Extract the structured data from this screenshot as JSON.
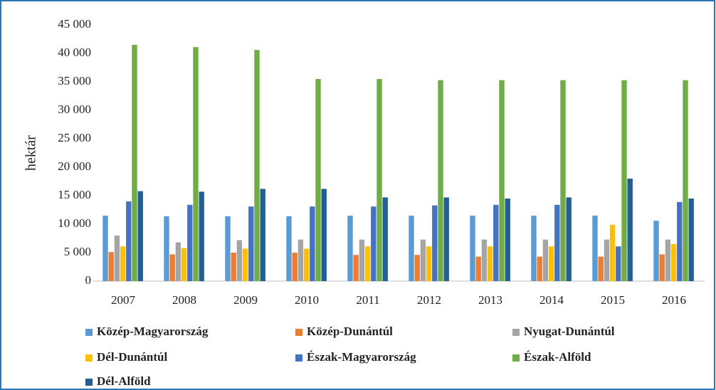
{
  "chart_data": {
    "type": "bar",
    "y_label": "hektár",
    "categories": [
      "2007",
      "2008",
      "2009",
      "2010",
      "2011",
      "2012",
      "2013",
      "2014",
      "2015",
      "2016"
    ],
    "series": [
      {
        "name": "Közép-Magyarország",
        "color": "#5b9bd5",
        "values": [
          11500,
          11400,
          11400,
          11400,
          11500,
          11500,
          11500,
          11500,
          11500,
          10600
        ]
      },
      {
        "name": "Közép-Dunántúl",
        "color": "#ed7d31",
        "values": [
          5100,
          4700,
          5000,
          5000,
          4600,
          4600,
          4300,
          4300,
          4300,
          4700
        ]
      },
      {
        "name": "Nyugat-Dunántúl",
        "color": "#a5a5a5",
        "values": [
          8000,
          6800,
          7200,
          7300,
          7300,
          7300,
          7300,
          7300,
          7300,
          7300
        ]
      },
      {
        "name": "Dél-Dunántúl",
        "color": "#ffc000",
        "values": [
          6100,
          5800,
          5700,
          5700,
          6100,
          6100,
          6100,
          6100,
          9900,
          6500
        ]
      },
      {
        "name": "Észak-Magyarország",
        "color": "#4472c4",
        "values": [
          14000,
          13400,
          13100,
          13100,
          13100,
          13300,
          13400,
          13400,
          6100,
          13900
        ]
      },
      {
        "name": "Észak-Alföld",
        "color": "#70ad47",
        "values": [
          41500,
          41100,
          40600,
          35500,
          35500,
          35300,
          35300,
          35300,
          35300,
          35300
        ]
      },
      {
        "name": "Dél-Alföld",
        "color": "#255e91",
        "values": [
          15800,
          15700,
          16200,
          16200,
          14700,
          14700,
          14500,
          14700,
          18000,
          14500
        ]
      }
    ],
    "ylim": [
      0,
      45000
    ],
    "yticks": [
      0,
      {
        "value": 5000,
        "label": "5 000"
      },
      {
        "value": 10000,
        "label": "10 000"
      },
      {
        "value": 15000,
        "label": "15 000"
      },
      {
        "value": 20000,
        "label": "20 000"
      },
      {
        "value": 25000,
        "label": "25 000"
      },
      {
        "value": 30000,
        "label": "30 000"
      },
      {
        "value": 35000,
        "label": "35 000"
      },
      {
        "value": 40000,
        "label": "40 000"
      },
      {
        "value": 45000,
        "label": "45 000"
      }
    ],
    "grid": false,
    "legend": "bottom"
  }
}
